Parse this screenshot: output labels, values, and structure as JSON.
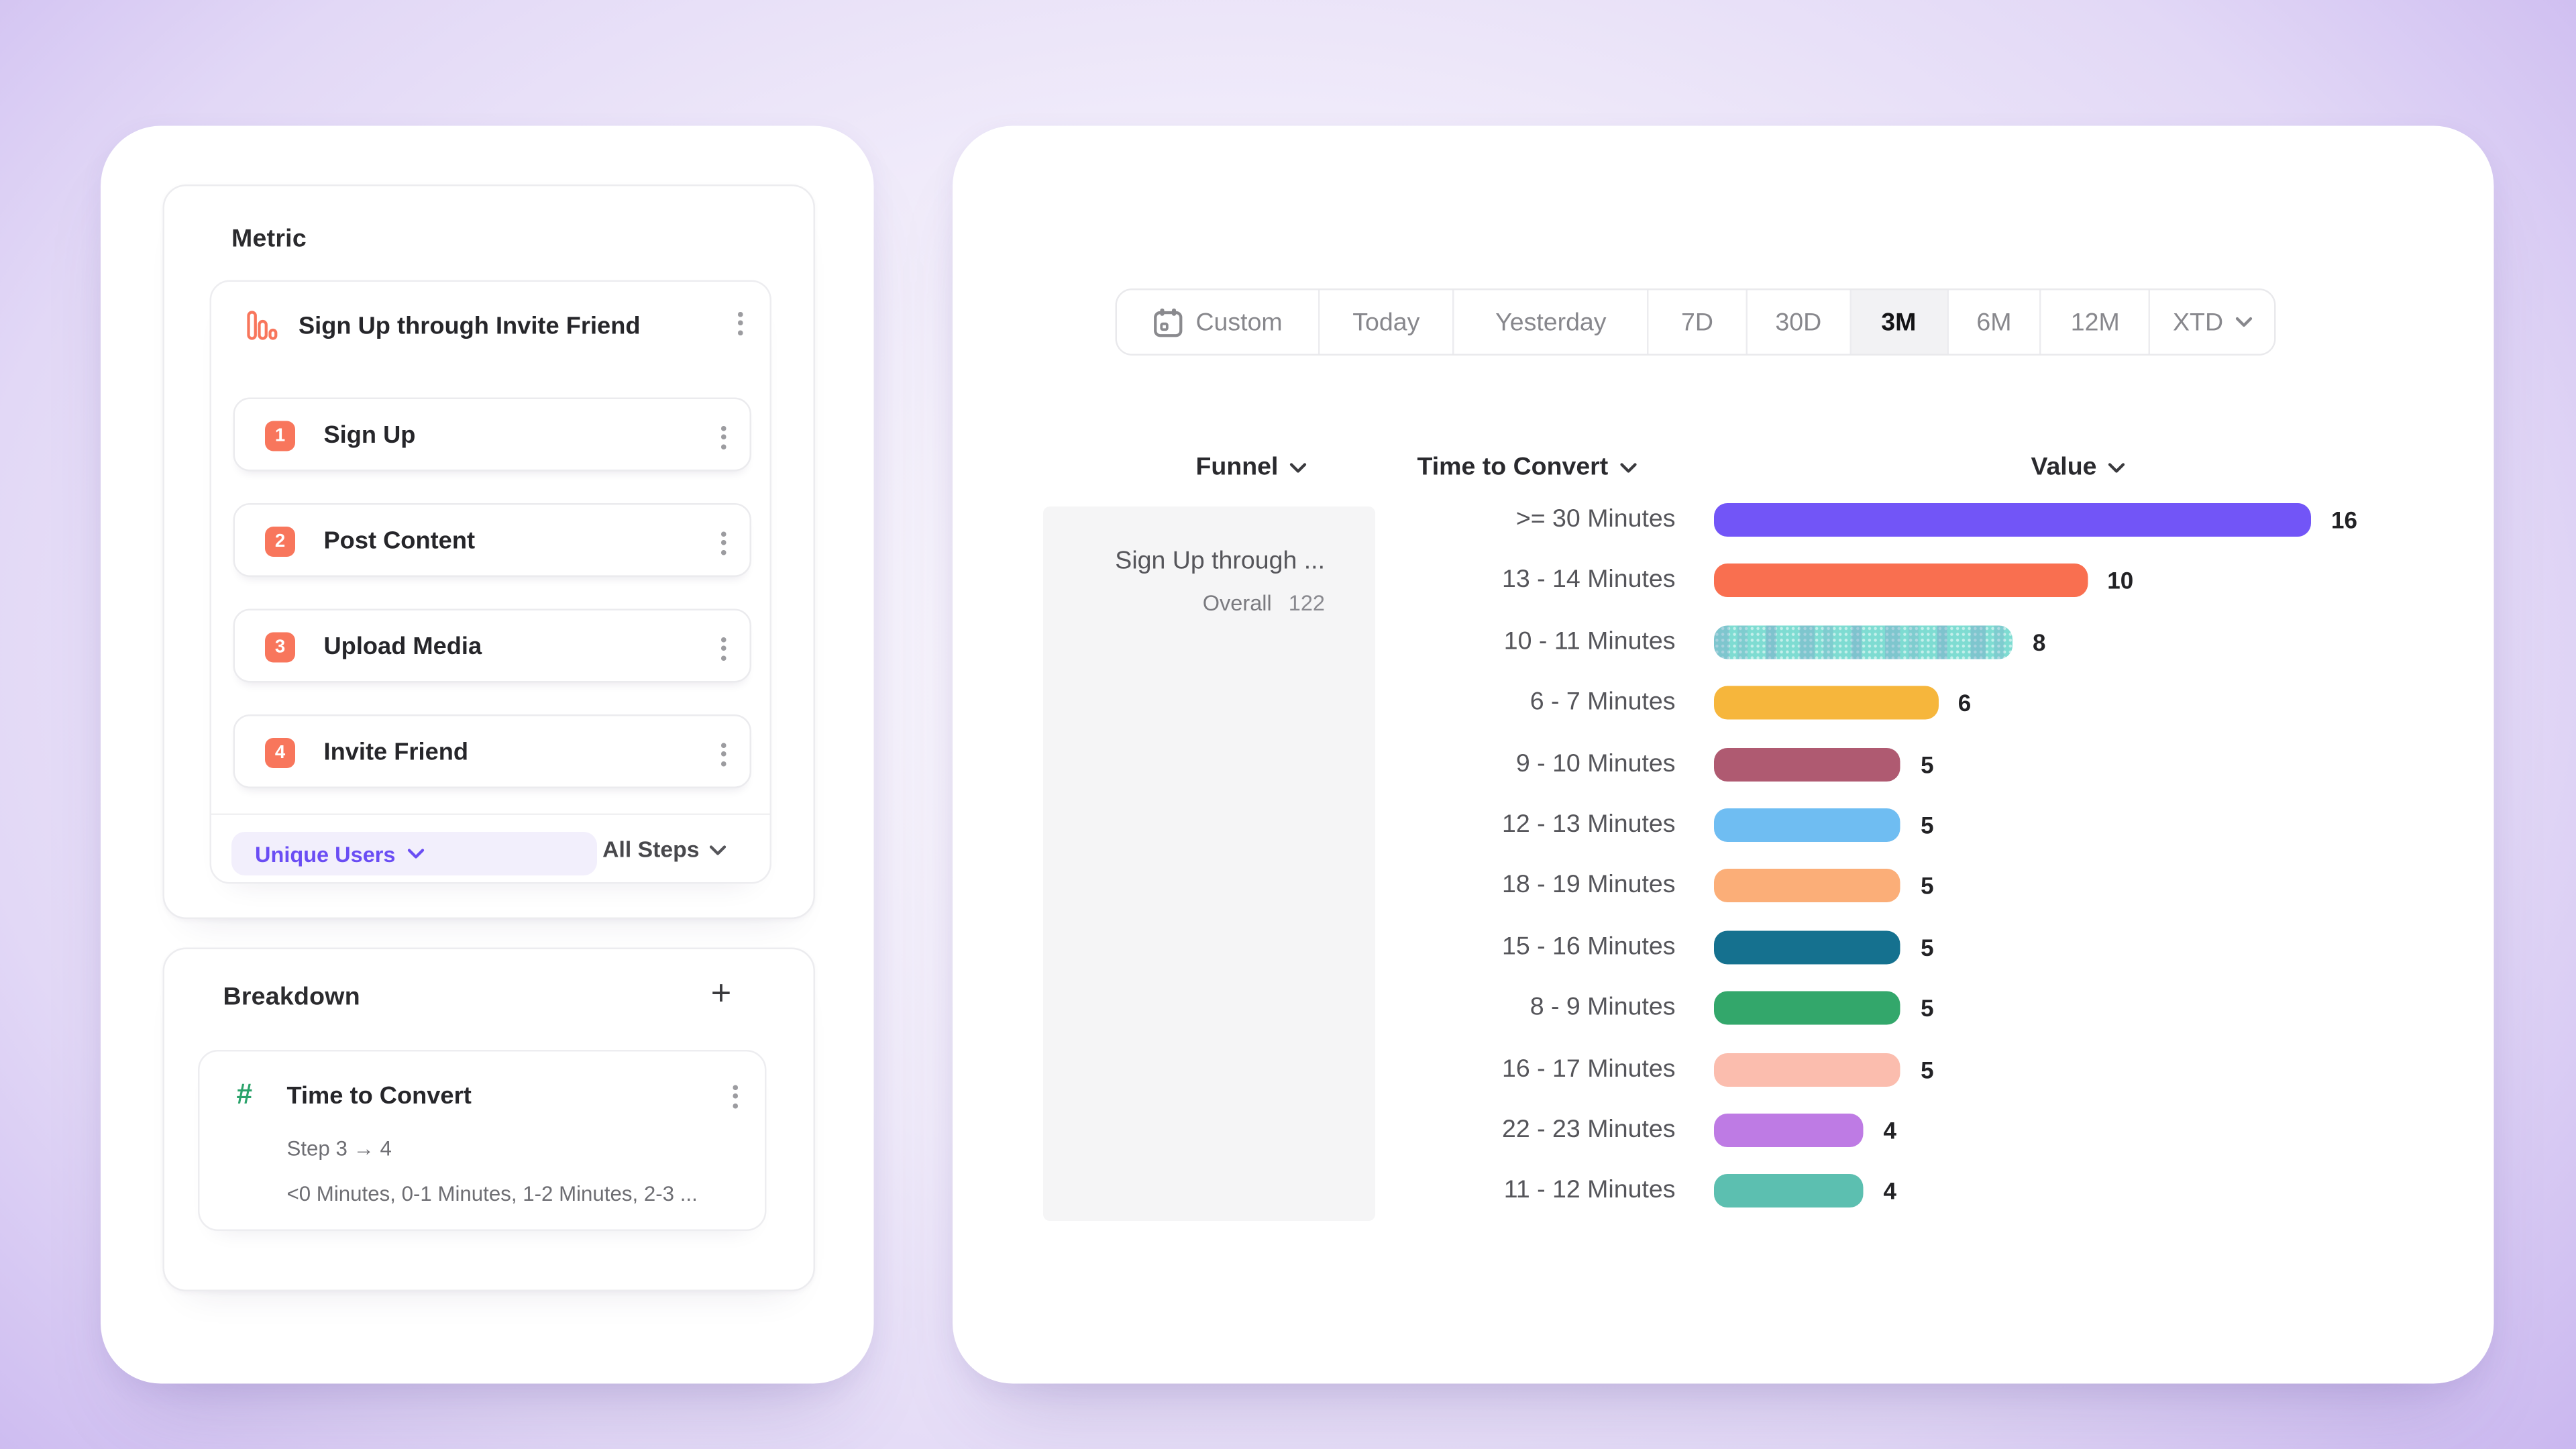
{
  "colors": {
    "accent_purple": "#6A4DF4",
    "step_badge_orange": "#F8765C",
    "breakdown_green": "#2BA36B",
    "selected_range_bg": "#F2F2F4",
    "funnel_cell_bg": "#F5F5F6"
  },
  "metric_panel": {
    "title": "Metric",
    "funnel": {
      "name": "Sign Up through Invite Friend",
      "steps": [
        {
          "number": "1",
          "label": "Sign Up"
        },
        {
          "number": "2",
          "label": "Post Content"
        },
        {
          "number": "3",
          "label": "Upload Media"
        },
        {
          "number": "4",
          "label": "Invite Friend"
        }
      ],
      "measurement_label": "Unique Users",
      "steps_filter_label": "All Steps"
    }
  },
  "breakdown_panel": {
    "title": "Breakdown",
    "add_label": "+",
    "property": {
      "name": "Time to Convert",
      "step_range": "Step 3 → 4",
      "buckets_preview": "<0 Minutes, 0-1 Minutes, 1-2 Minutes, 2-3 ..."
    }
  },
  "report_panel": {
    "date_ranges": [
      {
        "label": "Custom",
        "icon": "calendar-icon",
        "selected": false,
        "chevron": false
      },
      {
        "label": "Today",
        "selected": false,
        "chevron": false
      },
      {
        "label": "Yesterday",
        "selected": false,
        "chevron": false
      },
      {
        "label": "7D",
        "selected": false,
        "chevron": false
      },
      {
        "label": "30D",
        "selected": false,
        "chevron": false
      },
      {
        "label": "3M",
        "selected": true,
        "chevron": false
      },
      {
        "label": "6M",
        "selected": false,
        "chevron": false
      },
      {
        "label": "12M",
        "selected": false,
        "chevron": false
      },
      {
        "label": "XTD",
        "selected": false,
        "chevron": true
      }
    ],
    "columns": {
      "funnel": "Funnel",
      "breakdown": "Time to Convert",
      "value": "Value"
    },
    "funnel_cell": {
      "name": "Sign Up through ...",
      "overall_label": "Overall",
      "overall_value": "122"
    }
  },
  "chart_data": {
    "type": "bar",
    "orientation": "horizontal",
    "title": "Time to Convert breakdown (Step 3 → 4), 3M range",
    "categories": [
      ">= 30 Minutes",
      "13 - 14 Minutes",
      "10 - 11 Minutes",
      "6 - 7 Minutes",
      "9 - 10 Minutes",
      "12 - 13 Minutes",
      "18 - 19 Minutes",
      "15 - 16 Minutes",
      "8 - 9 Minutes",
      "16 - 17 Minutes",
      "22 - 23 Minutes",
      "11 - 12 Minutes"
    ],
    "values": [
      16,
      10,
      8,
      6,
      5,
      5,
      5,
      5,
      5,
      5,
      4,
      4
    ],
    "colors": [
      "#7255F7",
      "#F96F50",
      "#7EDCD2",
      "#F6B63C",
      "#AF5A71",
      "#6FBDF2",
      "#FBAE78",
      "#15718F",
      "#33A76B",
      "#FBBDAE",
      "#BE7BE4",
      "#5CBFB0"
    ],
    "patterns": [
      "solid",
      "solid",
      "hatched",
      "solid",
      "solid",
      "solid",
      "solid",
      "solid",
      "solid",
      "solid",
      "solid",
      "solid"
    ],
    "xlim": [
      0,
      16
    ],
    "overall": 122,
    "grid": false,
    "legend": "none"
  }
}
